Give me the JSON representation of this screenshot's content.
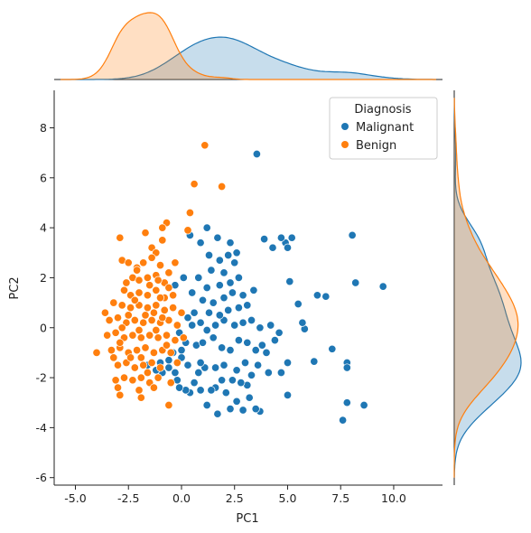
{
  "chart_data": {
    "type": "scatter",
    "xlabel": "PC1",
    "ylabel": "PC2",
    "xlim": [
      -6,
      12.3
    ],
    "ylim": [
      -6.3,
      9.5
    ],
    "x_ticks": [
      -5.0,
      -2.5,
      0.0,
      2.5,
      5.0,
      7.5,
      10.0
    ],
    "y_ticks": [
      -6,
      -4,
      -2,
      0,
      2,
      4,
      6,
      8
    ],
    "grid": false,
    "legend": {
      "title": "Diagnosis",
      "placement": "top-right"
    },
    "marginals": {
      "top": "kde of PC1 by Diagnosis",
      "right": "kde of PC2 by Diagnosis"
    },
    "series": [
      {
        "name": "Malignant",
        "color": "#1f77b4",
        "points": [
          [
            3.55,
            6.95
          ],
          [
            8.05,
            3.7
          ],
          [
            9.5,
            1.65
          ],
          [
            8.2,
            1.8
          ],
          [
            7.6,
            -3.7
          ],
          [
            7.8,
            -3.0
          ],
          [
            8.6,
            -3.1
          ],
          [
            7.1,
            -0.85
          ],
          [
            7.8,
            -1.4
          ],
          [
            7.8,
            -1.6
          ],
          [
            6.8,
            1.25
          ],
          [
            6.4,
            1.3
          ],
          [
            6.25,
            -1.35
          ],
          [
            5.5,
            0.95
          ],
          [
            5.2,
            3.6
          ],
          [
            4.9,
            3.4
          ],
          [
            4.7,
            3.6
          ],
          [
            5.0,
            3.2
          ],
          [
            4.3,
            3.2
          ],
          [
            3.9,
            3.55
          ],
          [
            5.1,
            1.85
          ],
          [
            5.0,
            -2.7
          ],
          [
            5.0,
            -1.4
          ],
          [
            4.7,
            -1.8
          ],
          [
            4.1,
            -1.8
          ],
          [
            4.4,
            -0.5
          ],
          [
            4.6,
            -0.2
          ],
          [
            5.8,
            -0.05
          ],
          [
            5.7,
            0.2
          ],
          [
            4.2,
            0.1
          ],
          [
            3.7,
            -3.35
          ],
          [
            3.5,
            -3.25
          ],
          [
            2.9,
            -3.3
          ],
          [
            3.2,
            -2.8
          ],
          [
            2.6,
            -2.95
          ],
          [
            2.3,
            -3.25
          ],
          [
            1.7,
            -3.45
          ],
          [
            1.2,
            -3.1
          ],
          [
            3.1,
            -2.3
          ],
          [
            2.8,
            -2.2
          ],
          [
            2.4,
            -2.1
          ],
          [
            2.1,
            -2.6
          ],
          [
            1.9,
            -2.1
          ],
          [
            1.6,
            -2.4
          ],
          [
            1.4,
            -2.5
          ],
          [
            0.9,
            -2.5
          ],
          [
            0.6,
            -2.2
          ],
          [
            0.4,
            -2.6
          ],
          [
            0.2,
            -2.5
          ],
          [
            -0.1,
            -2.4
          ],
          [
            0.8,
            -1.8
          ],
          [
            1.1,
            -1.6
          ],
          [
            1.6,
            -1.6
          ],
          [
            2.0,
            -1.5
          ],
          [
            2.6,
            -1.7
          ],
          [
            3.3,
            -1.9
          ],
          [
            3.0,
            -1.4
          ],
          [
            3.6,
            -1.5
          ],
          [
            0.3,
            -1.5
          ],
          [
            0.0,
            -1.2
          ],
          [
            -0.6,
            -1.6
          ],
          [
            -0.9,
            -1.8
          ],
          [
            -1.2,
            -1.7
          ],
          [
            -0.2,
            -2.1
          ],
          [
            -0.3,
            -1.8
          ],
          [
            0.9,
            -1.4
          ],
          [
            0.2,
            -0.6
          ],
          [
            0.7,
            -0.7
          ],
          [
            1.0,
            -0.6
          ],
          [
            1.5,
            -0.4
          ],
          [
            1.9,
            -0.8
          ],
          [
            2.3,
            -0.9
          ],
          [
            2.7,
            -0.5
          ],
          [
            3.1,
            -0.6
          ],
          [
            3.5,
            -0.9
          ],
          [
            3.8,
            -0.7
          ],
          [
            4.0,
            -1.0
          ],
          [
            0.5,
            0.1
          ],
          [
            0.9,
            0.2
          ],
          [
            1.2,
            -0.1
          ],
          [
            1.6,
            0.1
          ],
          [
            2.0,
            0.3
          ],
          [
            2.5,
            0.1
          ],
          [
            2.9,
            0.2
          ],
          [
            3.3,
            0.3
          ],
          [
            3.7,
            0.0
          ],
          [
            0.3,
            0.4
          ],
          [
            0.6,
            0.6
          ],
          [
            1.3,
            0.6
          ],
          [
            1.8,
            0.5
          ],
          [
            2.2,
            0.7
          ],
          [
            2.7,
            0.8
          ],
          [
            3.1,
            0.9
          ],
          [
            1.0,
            1.1
          ],
          [
            1.5,
            1.0
          ],
          [
            2.0,
            1.2
          ],
          [
            2.4,
            1.4
          ],
          [
            2.9,
            1.3
          ],
          [
            3.4,
            1.5
          ],
          [
            1.2,
            1.6
          ],
          [
            1.8,
            1.7
          ],
          [
            2.3,
            1.8
          ],
          [
            2.7,
            2.0
          ],
          [
            0.8,
            2.0
          ],
          [
            1.4,
            2.3
          ],
          [
            2.0,
            2.2
          ],
          [
            2.5,
            2.6
          ],
          [
            2.2,
            2.9
          ],
          [
            1.8,
            2.7
          ],
          [
            1.3,
            2.9
          ],
          [
            0.9,
            3.4
          ],
          [
            2.3,
            3.4
          ],
          [
            1.7,
            3.6
          ],
          [
            2.6,
            3.0
          ],
          [
            0.4,
            3.7
          ],
          [
            1.2,
            4.0
          ],
          [
            -0.6,
            -1.3
          ],
          [
            -1.0,
            -1.4
          ],
          [
            -1.6,
            -1.5
          ],
          [
            0.0,
            -0.9
          ],
          [
            -0.4,
            -1.0
          ],
          [
            0.1,
            2.0
          ],
          [
            -0.3,
            1.7
          ],
          [
            0.5,
            1.4
          ],
          [
            -0.1,
            -0.2
          ]
        ]
      },
      {
        "name": "Benign",
        "color": "#ff7f0e",
        "points": [
          [
            1.1,
            7.3
          ],
          [
            1.9,
            5.65
          ],
          [
            0.6,
            5.75
          ],
          [
            -0.7,
            4.2
          ],
          [
            -0.9,
            4.0
          ],
          [
            -1.7,
            3.8
          ],
          [
            -0.9,
            3.5
          ],
          [
            -1.4,
            3.2
          ],
          [
            -1.2,
            3.0
          ],
          [
            -2.9,
            3.6
          ],
          [
            0.4,
            4.6
          ],
          [
            0.3,
            3.9
          ],
          [
            -0.6,
            -3.1
          ],
          [
            -4.0,
            -1.0
          ],
          [
            -2.9,
            -2.7
          ],
          [
            -3.0,
            -2.4
          ],
          [
            -3.6,
            0.6
          ],
          [
            -2.8,
            2.7
          ],
          [
            -2.5,
            2.6
          ],
          [
            -2.1,
            2.4
          ],
          [
            -1.8,
            2.6
          ],
          [
            -1.4,
            2.8
          ],
          [
            -1.0,
            2.5
          ],
          [
            -0.6,
            2.2
          ],
          [
            -2.3,
            2.0
          ],
          [
            -2.0,
            1.9
          ],
          [
            -1.6,
            2.0
          ],
          [
            -1.2,
            2.1
          ],
          [
            -0.8,
            1.8
          ],
          [
            -2.7,
            1.5
          ],
          [
            -2.4,
            1.3
          ],
          [
            -2.0,
            1.4
          ],
          [
            -1.6,
            1.3
          ],
          [
            -1.2,
            1.5
          ],
          [
            -0.8,
            1.2
          ],
          [
            -0.4,
            1.3
          ],
          [
            -3.2,
            1.0
          ],
          [
            -2.8,
            0.9
          ],
          [
            -2.4,
            0.8
          ],
          [
            -2.0,
            0.9
          ],
          [
            -1.6,
            0.8
          ],
          [
            -1.2,
            0.9
          ],
          [
            -0.8,
            0.7
          ],
          [
            -0.4,
            0.8
          ],
          [
            0.0,
            0.6
          ],
          [
            -3.4,
            0.3
          ],
          [
            -3.0,
            0.4
          ],
          [
            -2.6,
            0.2
          ],
          [
            -2.2,
            0.3
          ],
          [
            -1.8,
            0.2
          ],
          [
            -1.4,
            0.3
          ],
          [
            -1.0,
            0.2
          ],
          [
            -0.6,
            0.3
          ],
          [
            -0.2,
            0.1
          ],
          [
            -3.5,
            -0.3
          ],
          [
            -3.1,
            -0.2
          ],
          [
            -2.7,
            -0.4
          ],
          [
            -2.3,
            -0.3
          ],
          [
            -1.9,
            -0.4
          ],
          [
            -1.5,
            -0.3
          ],
          [
            -1.1,
            -0.4
          ],
          [
            -0.7,
            -0.3
          ],
          [
            -0.3,
            -0.5
          ],
          [
            0.1,
            -0.4
          ],
          [
            -3.3,
            -0.9
          ],
          [
            -2.9,
            -0.8
          ],
          [
            -2.5,
            -1.0
          ],
          [
            -2.1,
            -0.9
          ],
          [
            -1.7,
            -0.8
          ],
          [
            -1.3,
            -1.0
          ],
          [
            -0.9,
            -0.9
          ],
          [
            -0.5,
            -1.0
          ],
          [
            -3.0,
            -1.5
          ],
          [
            -2.6,
            -1.4
          ],
          [
            -2.2,
            -1.6
          ],
          [
            -1.8,
            -1.5
          ],
          [
            -1.4,
            -1.4
          ],
          [
            -1.0,
            -1.6
          ],
          [
            -2.7,
            -2.0
          ],
          [
            -2.3,
            -2.1
          ],
          [
            -1.9,
            -2.0
          ],
          [
            -1.5,
            -2.2
          ],
          [
            -1.1,
            -2.0
          ],
          [
            -2.0,
            -2.5
          ],
          [
            -1.3,
            -2.4
          ],
          [
            -0.5,
            -2.2
          ],
          [
            -2.9,
            -0.6
          ],
          [
            -2.5,
            0.5
          ],
          [
            -1.7,
            0.5
          ],
          [
            -0.9,
            0.4
          ],
          [
            -1.2,
            -0.1
          ],
          [
            -2.0,
            -0.1
          ],
          [
            -2.8,
            0.0
          ],
          [
            -1.5,
            1.7
          ],
          [
            -2.2,
            1.1
          ],
          [
            -0.6,
            1.6
          ],
          [
            -1.0,
            1.2
          ],
          [
            -1.9,
            -1.2
          ],
          [
            -2.4,
            -1.2
          ],
          [
            -1.3,
            0.6
          ],
          [
            -0.7,
            -0.7
          ],
          [
            -3.2,
            -1.2
          ],
          [
            -2.1,
            2.3
          ],
          [
            -1.1,
            1.9
          ],
          [
            -0.3,
            2.6
          ],
          [
            -1.6,
            -1.8
          ],
          [
            -3.1,
            -2.1
          ],
          [
            -2.6,
            1.8
          ],
          [
            -1.9,
            -2.8
          ],
          [
            -0.2,
            -1.4
          ]
        ]
      }
    ]
  }
}
